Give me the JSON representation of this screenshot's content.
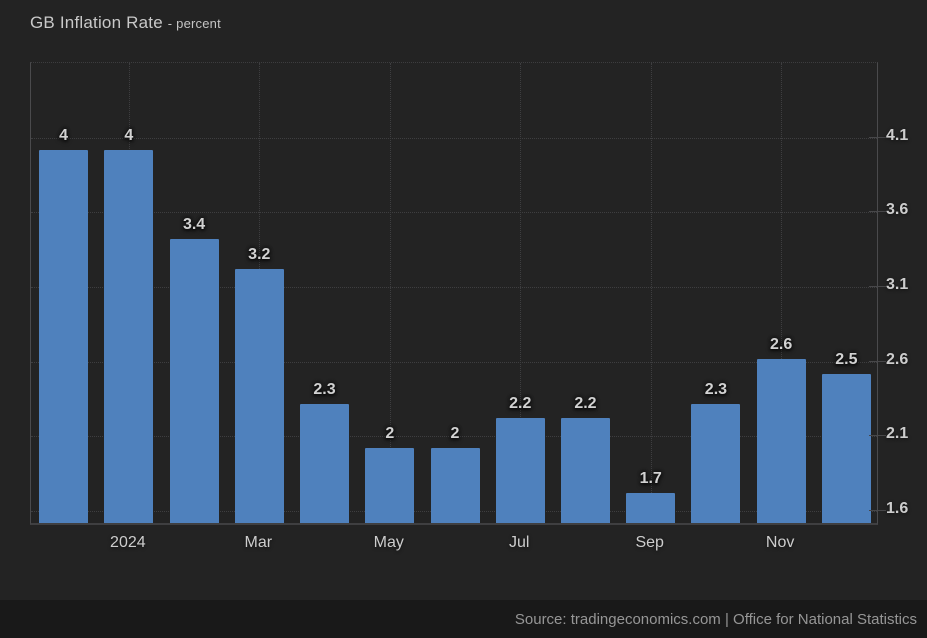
{
  "title": {
    "main": "GB Inflation Rate",
    "subtitle": "- percent"
  },
  "chart_data": {
    "type": "bar",
    "title": "GB Inflation Rate",
    "ylabel": "percent",
    "values": [
      4,
      4,
      3.4,
      3.2,
      2.3,
      2,
      2,
      2.2,
      2.2,
      1.7,
      2.3,
      2.6,
      2.5
    ],
    "bar_labels": [
      "4",
      "4",
      "3.4",
      "3.2",
      "2.3",
      "2",
      "2",
      "2.2",
      "2.2",
      "1.7",
      "2.3",
      "2.6",
      "2.5"
    ],
    "x_ticks": [
      {
        "bar_index": 1,
        "label": "2024"
      },
      {
        "bar_index": 3,
        "label": "Mar"
      },
      {
        "bar_index": 5,
        "label": "May"
      },
      {
        "bar_index": 7,
        "label": "Jul"
      },
      {
        "bar_index": 9,
        "label": "Sep"
      },
      {
        "bar_index": 11,
        "label": "Nov"
      }
    ],
    "y_ticks": [
      "4.1",
      "3.6",
      "3.1",
      "2.6",
      "2.1",
      "1.6"
    ],
    "ylim": [
      1.5,
      4.6
    ],
    "grid": "dotted",
    "y_axis_side": "right",
    "legend": "none"
  },
  "colors": {
    "background": "#232323",
    "footer_background": "#191919",
    "bar": "#4f81bd",
    "grid": "#3e3e40",
    "axis": "#4a4a4c",
    "tick_label": "#cdcdcd",
    "source_text": "#969696"
  },
  "footer": {
    "source": "Source: tradingeconomics.com | Office for National Statistics"
  }
}
